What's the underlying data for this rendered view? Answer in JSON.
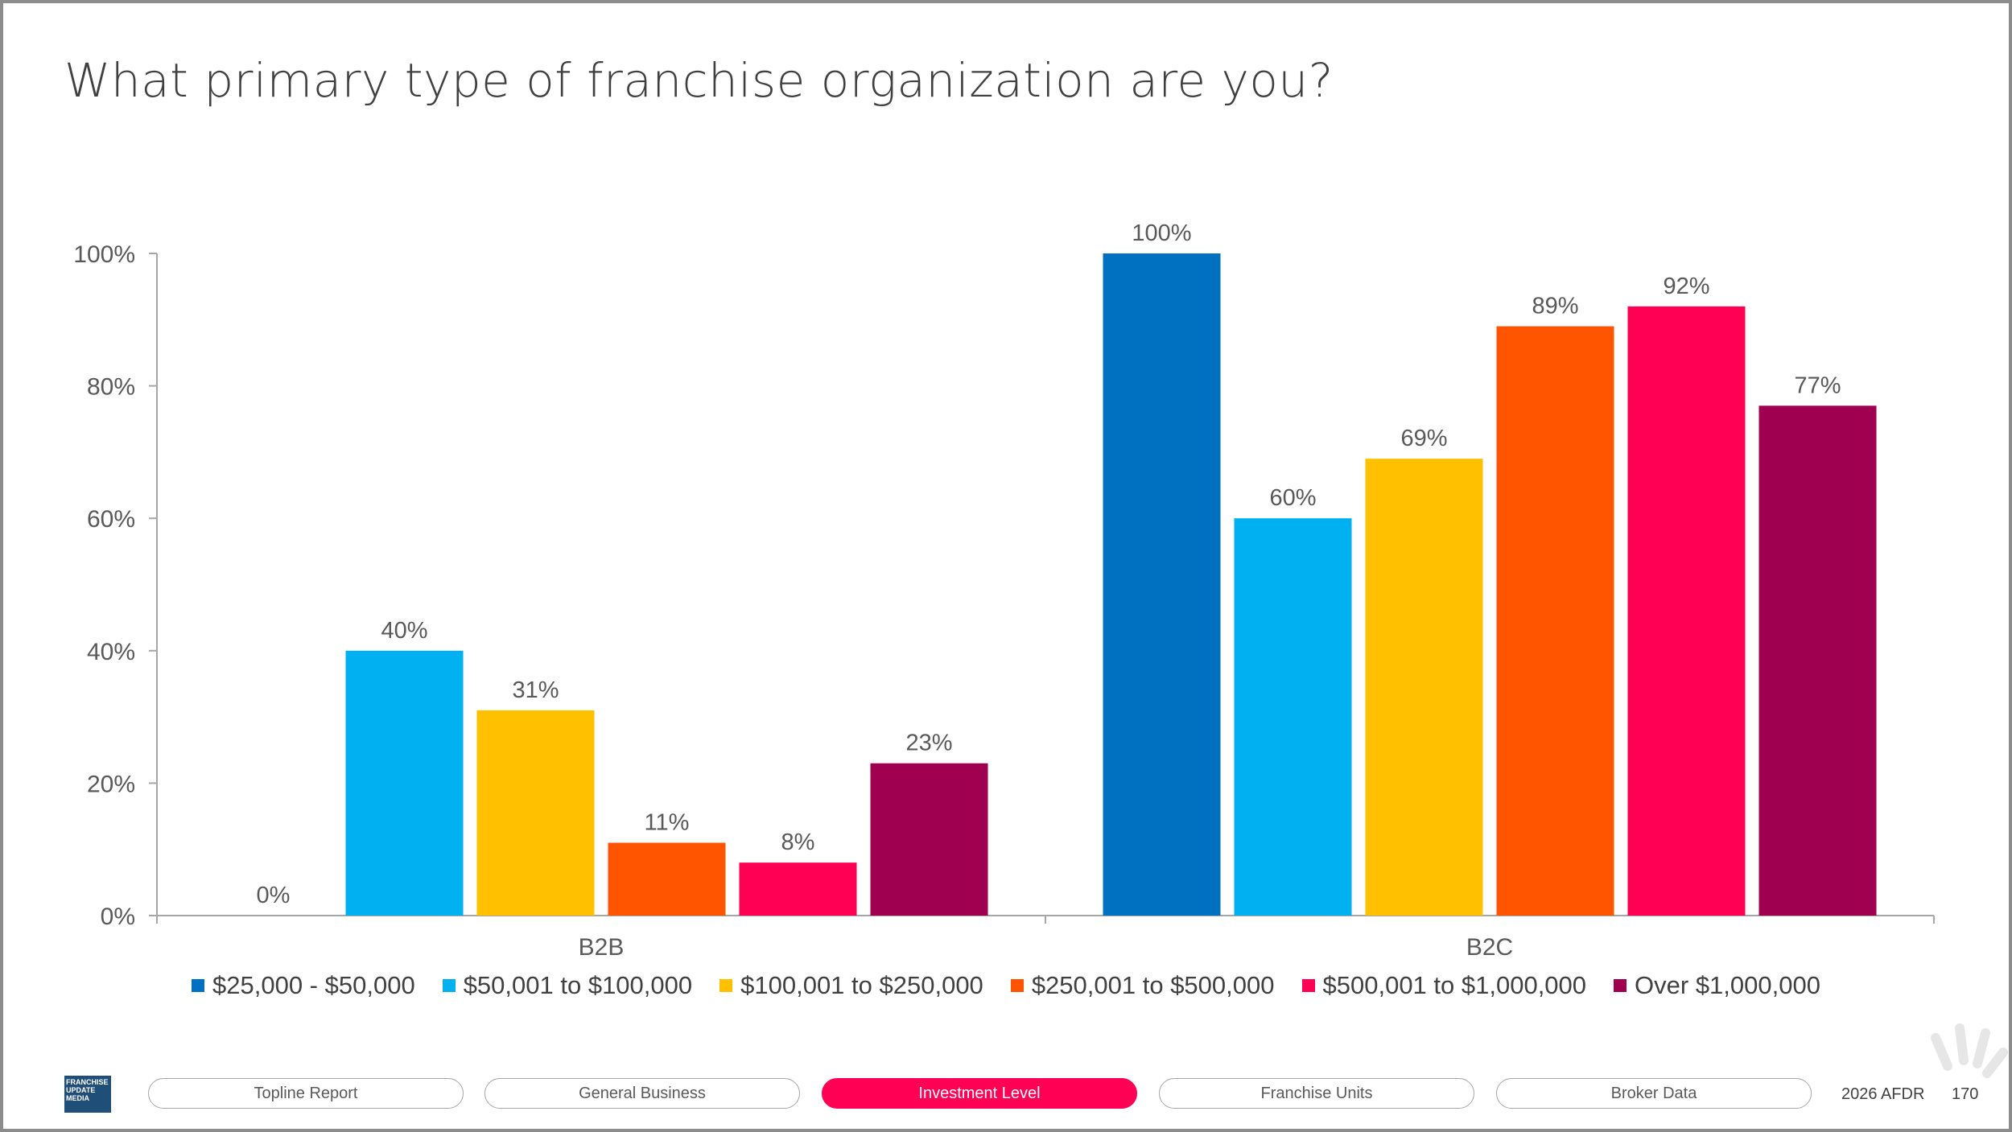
{
  "slide": {
    "title": "What primary type of franchise organization are you?"
  },
  "chart_data": {
    "type": "bar",
    "title": "What primary type of franchise organization are you?",
    "categories": [
      "B2B",
      "B2C"
    ],
    "series": [
      {
        "name": "$25,000 - $50,000",
        "values": [
          0,
          100
        ],
        "color": "#0070c0"
      },
      {
        "name": "$50,001 to $100,000",
        "values": [
          40,
          60
        ],
        "color": "#00b0f0"
      },
      {
        "name": "$100,001 to $250,000",
        "values": [
          31,
          69
        ],
        "color": "#ffc000"
      },
      {
        "name": "$250,001 to $500,000",
        "values": [
          11,
          89
        ],
        "color": "#ff5500"
      },
      {
        "name": "$500,001 to $1,000,000",
        "values": [
          8,
          92
        ],
        "color": "#ff0055"
      },
      {
        "name": "Over $1,000,000",
        "values": [
          23,
          77
        ],
        "color": "#a00050"
      }
    ],
    "data_labels": [
      [
        "0%",
        "40%",
        "31%",
        "11%",
        "8%",
        "23%"
      ],
      [
        "100%",
        "60%",
        "69%",
        "89%",
        "92%",
        "77%"
      ]
    ],
    "y_ticks": [
      "0%",
      "20%",
      "40%",
      "60%",
      "80%",
      "100%"
    ],
    "ylim": [
      0,
      100
    ],
    "legend_position": "bottom",
    "grid": false
  },
  "footer": {
    "logo_lines": [
      "FRANCHISE",
      "UPDATE",
      "MEDIA"
    ],
    "nav": [
      {
        "label": "Topline Report",
        "active": false
      },
      {
        "label": "General Business",
        "active": false
      },
      {
        "label": "Investment Level",
        "active": true
      },
      {
        "label": "Franchise Units",
        "active": false
      },
      {
        "label": "Broker Data",
        "active": false
      }
    ],
    "report_name": "2026 AFDR",
    "page_number": "170"
  },
  "colors": {
    "accent": "#ff0055",
    "axis": "#a6a6a6"
  }
}
